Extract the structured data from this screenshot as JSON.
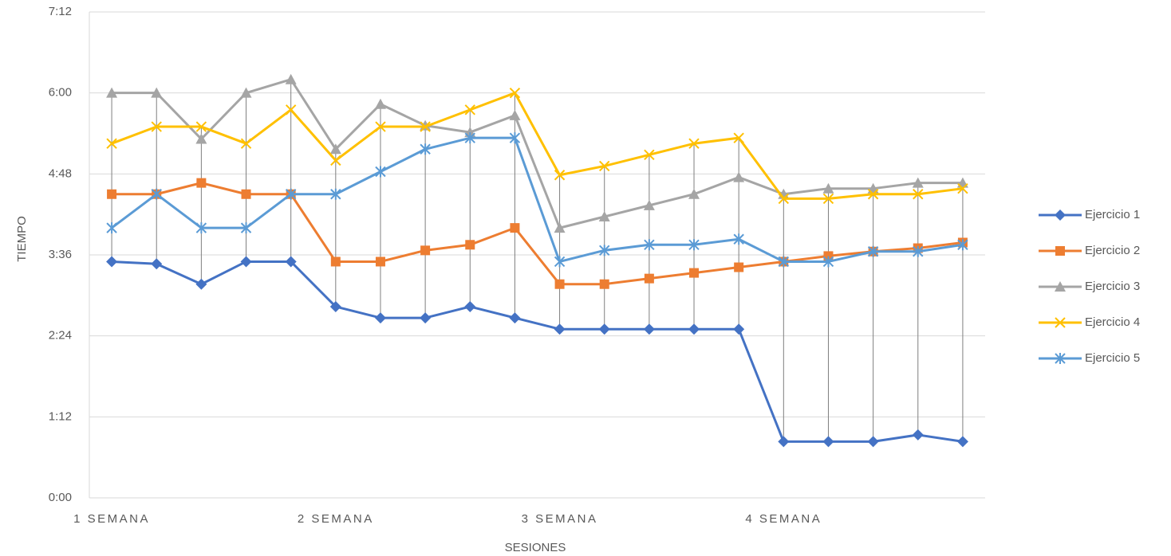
{
  "chart_data": {
    "type": "line",
    "xlabel": "SESIONES",
    "ylabel": "TIEMPO",
    "categories": [
      "1 SEMANA",
      null,
      null,
      null,
      null,
      "2 SEMANA",
      null,
      null,
      null,
      null,
      "3 SEMANA",
      null,
      null,
      null,
      null,
      "4 SEMANA",
      null,
      null,
      null,
      null
    ],
    "ylim": [
      0,
      432
    ],
    "yticks": [
      {
        "value": 0,
        "label": "0:00"
      },
      {
        "value": 72,
        "label": "1:12"
      },
      {
        "value": 144,
        "label": "2:24"
      },
      {
        "value": 216,
        "label": "3:36"
      },
      {
        "value": 288,
        "label": "4:48"
      },
      {
        "value": 360,
        "label": "6:00"
      },
      {
        "value": 432,
        "label": "7:12"
      }
    ],
    "grid": true,
    "legend": "right",
    "series": [
      {
        "name": "Ejercicio 1",
        "color": "#4472c4",
        "marker": "diamond",
        "values": [
          210,
          208,
          190,
          210,
          210,
          170,
          160,
          160,
          170,
          160,
          150,
          150,
          150,
          150,
          150,
          50,
          50,
          50,
          56,
          50
        ]
      },
      {
        "name": "Ejercicio 2",
        "color": "#ed7d31",
        "marker": "square",
        "values": [
          270,
          270,
          280,
          270,
          270,
          210,
          210,
          220,
          225,
          240,
          190,
          190,
          195,
          200,
          205,
          210,
          215,
          219,
          222,
          227
        ]
      },
      {
        "name": "Ejercicio 3",
        "color": "#a5a5a5",
        "marker": "triangle",
        "values": [
          360,
          360,
          319,
          360,
          372,
          310,
          350,
          331,
          325,
          340,
          240,
          250,
          260,
          270,
          285,
          270,
          275,
          275,
          280,
          280
        ]
      },
      {
        "name": "Ejercicio 4",
        "color": "#ffc000",
        "marker": "x",
        "values": [
          315,
          330,
          330,
          315,
          345,
          300,
          330,
          330,
          345,
          360,
          287,
          295,
          305,
          315,
          320,
          266,
          266,
          270,
          270,
          275
        ]
      },
      {
        "name": "Ejercicio 5",
        "color": "#5b9bd5",
        "marker": "star",
        "values": [
          240,
          270,
          240,
          240,
          270,
          270,
          290,
          310,
          320,
          320,
          210,
          220,
          225,
          225,
          230,
          210,
          210,
          219,
          219,
          225
        ]
      }
    ]
  }
}
